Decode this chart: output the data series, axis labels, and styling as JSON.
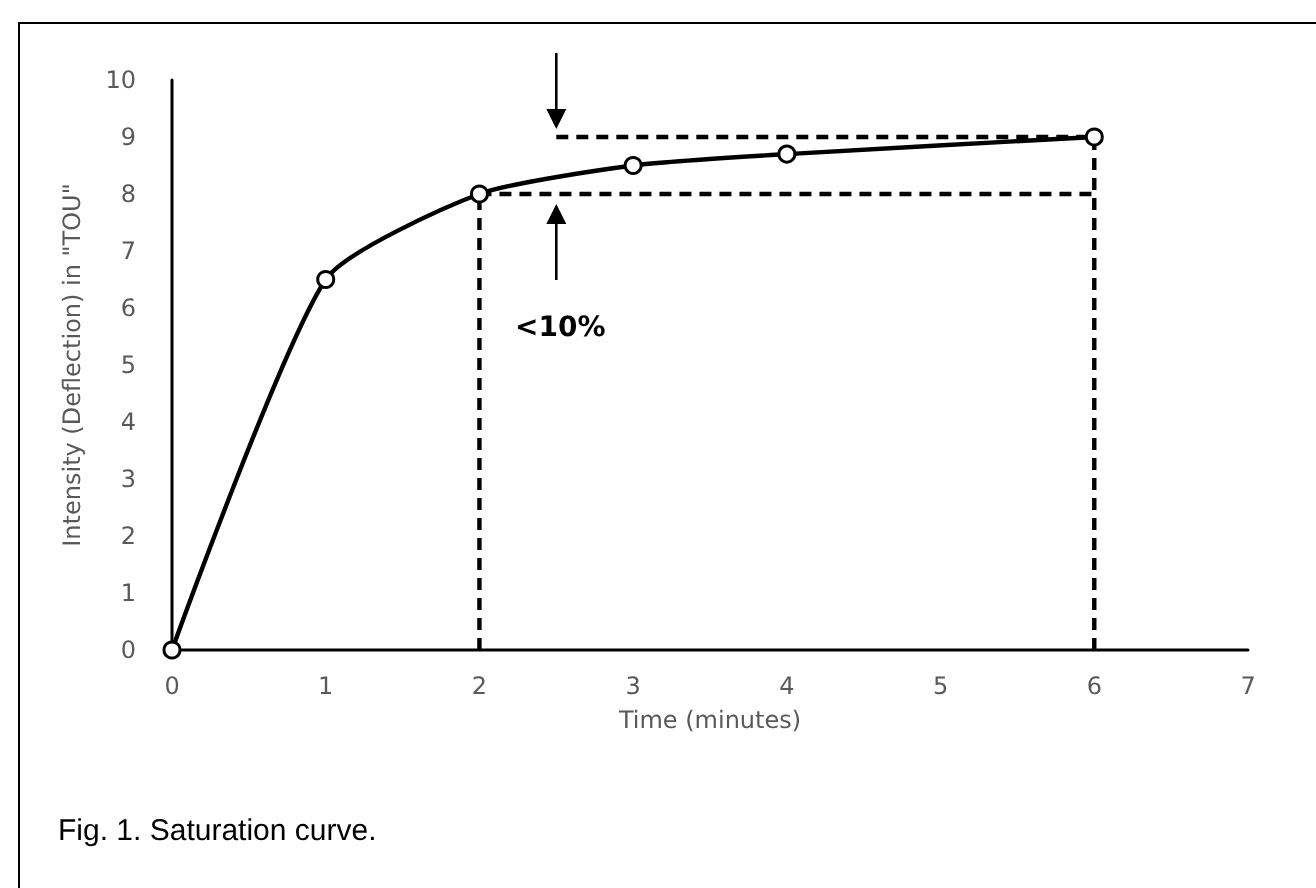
{
  "chart_data": {
    "type": "line",
    "xlabel": "Time (minutes)",
    "ylabel": "Intensity (Deflection) in \"TOU\"",
    "xlim": [
      0,
      7
    ],
    "xticks": [
      0,
      1,
      2,
      3,
      4,
      5,
      6,
      7
    ],
    "ylim": [
      0,
      10
    ],
    "yticks": [
      0,
      1,
      2,
      3,
      4,
      5,
      6,
      7,
      8,
      9,
      10
    ],
    "grid": false,
    "annotations": [
      "<10%",
      "Fig. 1. Saturation curve."
    ],
    "series": [
      {
        "color": "#000000",
        "x": [
          0,
          1,
          2,
          3,
          4,
          6
        ],
        "values": [
          0,
          6.5,
          8,
          8.5,
          8.7,
          9
        ],
        "marker": "circle",
        "line_style": "solid"
      },
      {
        "color": "#000000",
        "x": [
          2,
          2
        ],
        "values": [
          0,
          8
        ],
        "marker": "none",
        "line_style": "dashed"
      },
      {
        "color": "#000000",
        "x": [
          6,
          6
        ],
        "values": [
          0,
          9
        ],
        "marker": "none",
        "line_style": "dashed"
      },
      {
        "color": "#000000",
        "x": [
          2,
          6
        ],
        "values": [
          8,
          8
        ],
        "marker": "none",
        "line_style": "dashed"
      },
      {
        "color": "#000000",
        "x": [
          2.5,
          6
        ],
        "values": [
          9,
          9
        ],
        "marker": "none",
        "line_style": "dashed"
      }
    ]
  }
}
